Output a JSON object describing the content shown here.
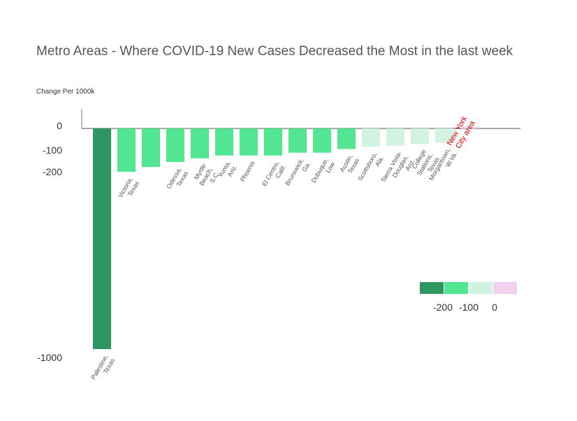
{
  "chart_data": {
    "type": "bar",
    "title": "Metro Areas - Where COVID-19 New Cases Decreased the Most in the last week",
    "ylabel": "Change Per 1000k",
    "y_ticks": [
      "0",
      "-100",
      "-200",
      "-1000"
    ],
    "categories": [
      [
        "Palestine,",
        "Texas"
      ],
      [
        "Victoria,",
        "Texas"
      ],
      [
        ""
      ],
      [
        "Odessa,",
        "Texas"
      ],
      [
        "Myrtle",
        "Beach,",
        "S.C."
      ],
      [
        "Yuma,",
        "Ariz."
      ],
      [
        "Phoenix"
      ],
      [
        "El Centro,",
        "Calif."
      ],
      [
        "Brunswick,",
        "Ga."
      ],
      [
        "Dubuque,",
        "Low"
      ],
      [
        "Austin,",
        "Texas"
      ],
      [
        "Scottsboro,",
        "Ala."
      ],
      [
        "Sierra Vista-",
        "Douglas,",
        "Ariz."
      ],
      [
        "College",
        "Stations,",
        "Texas"
      ],
      [
        "Morgantown,",
        "W.Va."
      ],
      [
        "New York",
        "City area"
      ]
    ],
    "values": [
      -1000,
      -200,
      -178,
      -155,
      -138,
      -125,
      -125,
      -125,
      -112,
      -112,
      -95,
      -85,
      -80,
      -72,
      -65,
      8
    ],
    "colors": [
      "#2e9660",
      "#53e692",
      "#53e692",
      "#53e692",
      "#53e692",
      "#53e692",
      "#53e692",
      "#53e692",
      "#53e692",
      "#53e692",
      "#53e692",
      "#d2f3e2",
      "#d2f3e2",
      "#d2f3e2",
      "#d2f3e2",
      "#f0d2ef"
    ],
    "highlight_label_color": "#dd0000",
    "legend": {
      "placement": "bottom-right",
      "swatches": [
        "#2e9660",
        "#53e692",
        "#d2f3e2",
        "#f0d2ef"
      ],
      "labels": [
        "-200",
        "-100",
        "0"
      ]
    }
  }
}
